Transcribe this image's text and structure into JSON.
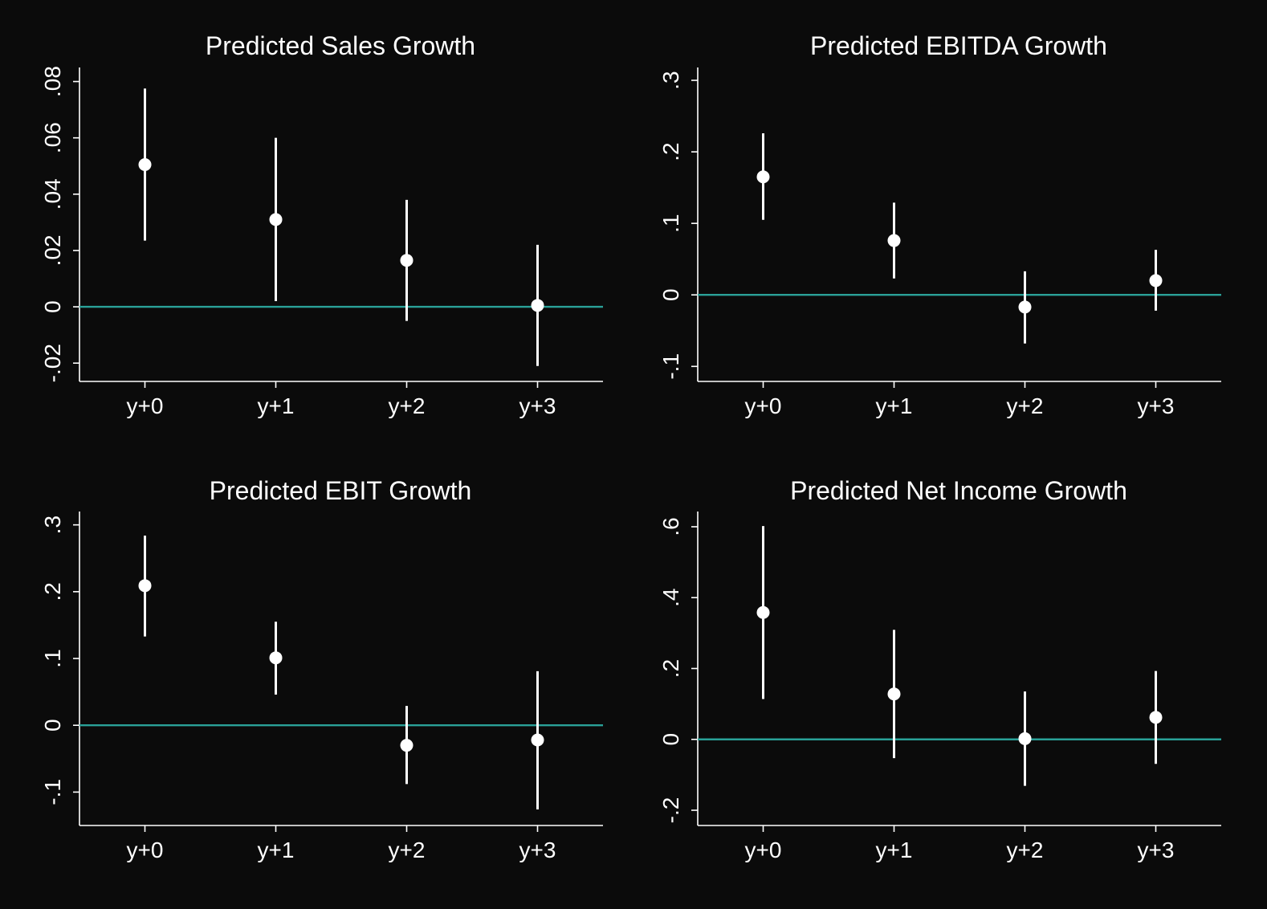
{
  "colors": {
    "background": "#0b0b0b",
    "foreground": "#ffffff",
    "zero_line": "#2aa198"
  },
  "chart_data": [
    {
      "type": "scatter",
      "title": "Predicted Sales Growth",
      "categories": [
        "y+0",
        "y+1",
        "y+2",
        "y+3"
      ],
      "points": [
        0.0505,
        0.031,
        0.0165,
        0.0005
      ],
      "ci_low": [
        0.0235,
        0.002,
        -0.005,
        -0.021
      ],
      "ci_high": [
        0.0775,
        0.06,
        0.038,
        0.022
      ],
      "yticks": [
        -0.02,
        0,
        0.02,
        0.04,
        0.06,
        0.08
      ],
      "ytick_labels": [
        "-.02",
        "0",
        ".02",
        ".04",
        ".06",
        ".08"
      ],
      "ylim": [
        -0.0265,
        0.085
      ],
      "reference_line": 0,
      "xlabel": "",
      "ylabel": ""
    },
    {
      "type": "scatter",
      "title": "Predicted EBITDA Growth",
      "categories": [
        "y+0",
        "y+1",
        "y+2",
        "y+3"
      ],
      "points": [
        0.165,
        0.076,
        -0.017,
        0.02
      ],
      "ci_low": [
        0.105,
        0.023,
        -0.068,
        -0.022
      ],
      "ci_high": [
        0.226,
        0.129,
        0.033,
        0.063
      ],
      "yticks": [
        -0.1,
        0,
        0.1,
        0.2,
        0.3
      ],
      "ytick_labels": [
        "-.1",
        "0",
        ".1",
        ".2",
        ".3"
      ],
      "ylim": [
        -0.121,
        0.318
      ],
      "reference_line": 0,
      "xlabel": "",
      "ylabel": ""
    },
    {
      "type": "scatter",
      "title": "Predicted EBIT Growth",
      "categories": [
        "y+0",
        "y+1",
        "y+2",
        "y+3"
      ],
      "points": [
        0.209,
        0.101,
        -0.03,
        -0.022
      ],
      "ci_low": [
        0.133,
        0.046,
        -0.088,
        -0.126
      ],
      "ci_high": [
        0.284,
        0.155,
        0.029,
        0.081
      ],
      "yticks": [
        -0.1,
        0,
        0.1,
        0.2,
        0.3
      ],
      "ytick_labels": [
        "-.1",
        "0",
        ".1",
        ".2",
        ".3"
      ],
      "ylim": [
        -0.15,
        0.32
      ],
      "reference_line": 0,
      "xlabel": "",
      "ylabel": ""
    },
    {
      "type": "scatter",
      "title": "Predicted Net Income Growth",
      "categories": [
        "y+0",
        "y+1",
        "y+2",
        "y+3"
      ],
      "points": [
        0.358,
        0.128,
        0.002,
        0.062
      ],
      "ci_low": [
        0.114,
        -0.053,
        -0.131,
        -0.069
      ],
      "ci_high": [
        0.602,
        0.309,
        0.135,
        0.193
      ],
      "yticks": [
        -0.2,
        0,
        0.2,
        0.4,
        0.6
      ],
      "ytick_labels": [
        "-.2",
        "0",
        ".2",
        ".4",
        ".6"
      ],
      "ylim": [
        -0.243,
        0.643
      ],
      "reference_line": 0,
      "xlabel": "",
      "ylabel": ""
    }
  ]
}
